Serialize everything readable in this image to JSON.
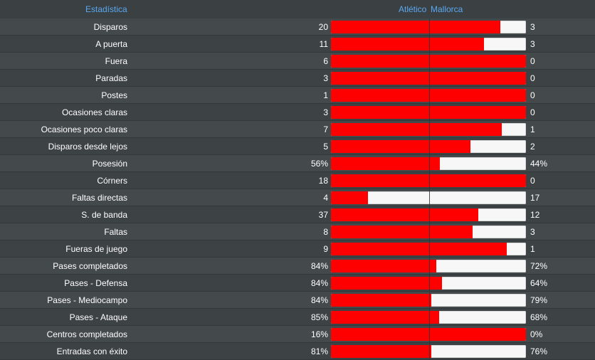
{
  "header": {
    "stat_label": "Estadística",
    "home_team": "Atlético",
    "away_team": "Mallorca"
  },
  "colors": {
    "home_bar": "#ff0000",
    "away_bar": "#f7f7f7",
    "header_text": "#5aa8f0"
  },
  "rows": [
    {
      "label": "Disparos",
      "home": "20",
      "away": "3",
      "home_share": 0.87
    },
    {
      "label": "A puerta",
      "home": "11",
      "away": "3",
      "home_share": 0.785
    },
    {
      "label": "Fuera",
      "home": "6",
      "away": "0",
      "home_share": 1.0
    },
    {
      "label": "Paradas",
      "home": "3",
      "away": "0",
      "home_share": 1.0
    },
    {
      "label": "Postes",
      "home": "1",
      "away": "0",
      "home_share": 1.0
    },
    {
      "label": "Ocasiones claras",
      "home": "3",
      "away": "0",
      "home_share": 1.0
    },
    {
      "label": "Ocasiones poco claras",
      "home": "7",
      "away": "1",
      "home_share": 0.875
    },
    {
      "label": "Disparos desde lejos",
      "home": "5",
      "away": "2",
      "home_share": 0.715
    },
    {
      "label": "Posesión",
      "home": "56%",
      "away": "44%",
      "home_share": 0.56
    },
    {
      "label": "Córners",
      "home": "18",
      "away": "0",
      "home_share": 1.0
    },
    {
      "label": "Faltas directas",
      "home": "4",
      "away": "17",
      "home_share": 0.19
    },
    {
      "label": "S. de banda",
      "home": "37",
      "away": "12",
      "home_share": 0.755
    },
    {
      "label": "Faltas",
      "home": "8",
      "away": "3",
      "home_share": 0.725
    },
    {
      "label": "Fueras de juego",
      "home": "9",
      "away": "1",
      "home_share": 0.9
    },
    {
      "label": "Pases completados",
      "home": "84%",
      "away": "72%",
      "home_share": 0.54
    },
    {
      "label": "Pases - Defensa",
      "home": "84%",
      "away": "64%",
      "home_share": 0.57
    },
    {
      "label": "Pases - Mediocampo",
      "home": "84%",
      "away": "79%",
      "home_share": 0.515
    },
    {
      "label": "Pases - Ataque",
      "home": "85%",
      "away": "68%",
      "home_share": 0.555
    },
    {
      "label": "Centros completados",
      "home": "16%",
      "away": "0%",
      "home_share": 1.0
    },
    {
      "label": "Entradas con éxito",
      "home": "81%",
      "away": "76%",
      "home_share": 0.515
    }
  ]
}
